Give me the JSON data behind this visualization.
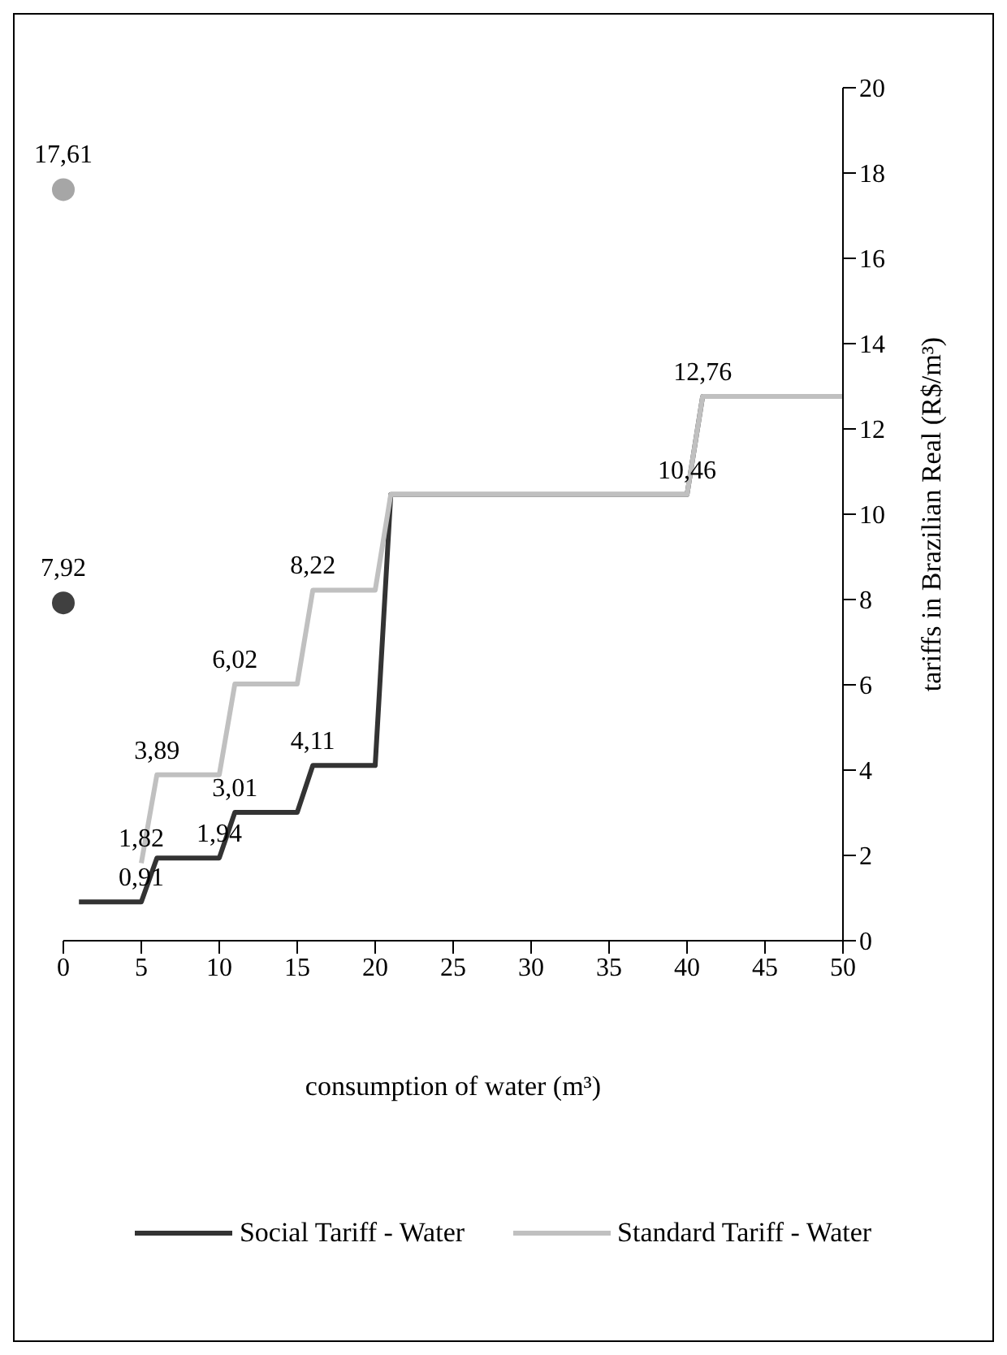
{
  "chart_data": {
    "type": "line",
    "xlabel": "consumption of water (m³)",
    "ylabel": "tariffs in Brazilian Real (R$/m³)",
    "xlim": [
      0,
      50
    ],
    "xticks": [
      0,
      5,
      10,
      15,
      20,
      25,
      30,
      35,
      40,
      45,
      50
    ],
    "ylim": [
      0,
      20
    ],
    "yticks": [
      0,
      2,
      4,
      6,
      8,
      10,
      12,
      14,
      16,
      18,
      20
    ],
    "grid": false,
    "legend": "bottom",
    "series": [
      {
        "name": "Social Tariff - Water",
        "color": "#333333",
        "x": [
          1,
          5,
          6,
          10,
          11,
          15,
          16,
          20,
          21,
          40,
          41,
          50
        ],
        "values": [
          0.91,
          0.91,
          1.94,
          1.94,
          3.01,
          3.01,
          4.11,
          4.11,
          10.46,
          10.46,
          12.76,
          12.76
        ],
        "value_labels": [
          null,
          "0,91",
          null,
          "1,94",
          "3,01",
          null,
          "4,11",
          null,
          null,
          null,
          null,
          null
        ]
      },
      {
        "name": "Standard Tariff - Water",
        "color": "#c0c0c0",
        "x": [
          5,
          6,
          10,
          11,
          15,
          16,
          20,
          21,
          40,
          41,
          50
        ],
        "values": [
          1.82,
          3.89,
          3.89,
          6.02,
          6.02,
          8.22,
          8.22,
          10.46,
          10.46,
          12.76,
          12.76
        ],
        "value_labels": [
          "1,82",
          "3,89",
          null,
          "6,02",
          null,
          "8,22",
          null,
          null,
          "10,46",
          "12,76",
          null
        ]
      },
      {
        "type": "scatter",
        "marker": "circle",
        "color": "#a6a6a6",
        "x": [
          0
        ],
        "values": [
          17.61
        ],
        "value_labels": [
          "17,61"
        ]
      },
      {
        "type": "scatter",
        "marker": "circle",
        "color": "#404040",
        "x": [
          0
        ],
        "values": [
          7.92
        ],
        "value_labels": [
          "7,92"
        ]
      }
    ]
  }
}
